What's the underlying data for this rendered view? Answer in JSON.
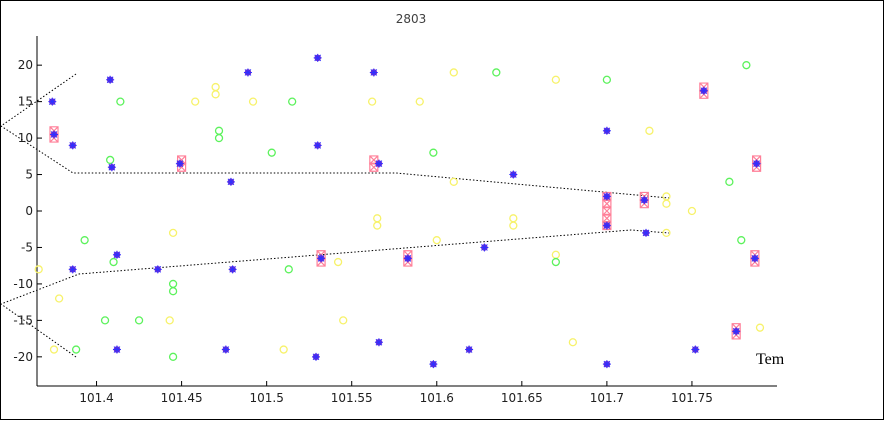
{
  "chart_data": {
    "type": "scatter",
    "title": "2803",
    "xlabel": "",
    "ylabel": "",
    "xlim": [
      101.365,
      101.8
    ],
    "ylim": [
      -24,
      24
    ],
    "x_ticks": [
      "101.4",
      "101.45",
      "101.5",
      "101.55",
      "101.6",
      "101.65",
      "101.7",
      "101.75"
    ],
    "y_ticks": [
      "-20",
      "-15",
      "-10",
      "-5",
      "0",
      "5",
      "10",
      "15",
      "20"
    ],
    "annotation": "Tem",
    "grid": false,
    "series": [
      {
        "marker": "open circle",
        "color": "#f7f26a",
        "points": [
          [
            101.366,
            -8
          ],
          [
            101.375,
            -19
          ],
          [
            101.378,
            -12
          ],
          [
            101.445,
            -3
          ],
          [
            101.443,
            -15
          ],
          [
            101.458,
            15
          ],
          [
            101.47,
            16
          ],
          [
            101.47,
            17
          ],
          [
            101.492,
            15
          ],
          [
            101.51,
            -19
          ],
          [
            101.542,
            -7
          ],
          [
            101.545,
            -15
          ],
          [
            101.562,
            15
          ],
          [
            101.565,
            -1
          ],
          [
            101.565,
            -2
          ],
          [
            101.59,
            15
          ],
          [
            101.6,
            -4
          ],
          [
            101.61,
            19
          ],
          [
            101.61,
            4
          ],
          [
            101.645,
            -1
          ],
          [
            101.645,
            -2
          ],
          [
            101.67,
            18
          ],
          [
            101.67,
            -6
          ],
          [
            101.68,
            -18
          ],
          [
            101.725,
            11
          ],
          [
            101.735,
            2
          ],
          [
            101.735,
            1
          ],
          [
            101.735,
            -3
          ],
          [
            101.75,
            0
          ],
          [
            101.79,
            -16
          ]
        ]
      },
      {
        "marker": "open circle",
        "color": "#5cf25c",
        "points": [
          [
            101.388,
            -19
          ],
          [
            101.393,
            -4
          ],
          [
            101.405,
            -15
          ],
          [
            101.408,
            7
          ],
          [
            101.41,
            -7
          ],
          [
            101.414,
            15
          ],
          [
            101.425,
            -15
          ],
          [
            101.445,
            -20
          ],
          [
            101.445,
            -10
          ],
          [
            101.445,
            -11
          ],
          [
            101.472,
            10
          ],
          [
            101.472,
            11
          ],
          [
            101.503,
            8
          ],
          [
            101.513,
            -8
          ],
          [
            101.515,
            15
          ],
          [
            101.598,
            8
          ],
          [
            101.635,
            19
          ],
          [
            101.67,
            -7
          ],
          [
            101.7,
            18
          ],
          [
            101.772,
            4
          ],
          [
            101.779,
            -4
          ],
          [
            101.782,
            20
          ]
        ]
      },
      {
        "marker": "x-box",
        "color": "#ff7f98",
        "points": [
          [
            101.375,
            11
          ],
          [
            101.375,
            10
          ],
          [
            101.45,
            7
          ],
          [
            101.45,
            6
          ],
          [
            101.532,
            -6
          ],
          [
            101.532,
            -7
          ],
          [
            101.563,
            7
          ],
          [
            101.563,
            6
          ],
          [
            101.583,
            -6
          ],
          [
            101.583,
            -7
          ],
          [
            101.7,
            2
          ],
          [
            101.7,
            1
          ],
          [
            101.7,
            0
          ],
          [
            101.7,
            -1
          ],
          [
            101.7,
            -2
          ],
          [
            101.722,
            2
          ],
          [
            101.722,
            1
          ],
          [
            101.757,
            17
          ],
          [
            101.757,
            16
          ],
          [
            101.776,
            -16
          ],
          [
            101.776,
            -17
          ],
          [
            101.787,
            -6
          ],
          [
            101.787,
            -7
          ],
          [
            101.788,
            7
          ],
          [
            101.788,
            6
          ]
        ]
      },
      {
        "marker": "star",
        "color": "#7b2cc8",
        "points": [
          [
            101.374,
            15
          ],
          [
            101.375,
            10.5
          ],
          [
            101.386,
            9
          ],
          [
            101.386,
            -8
          ],
          [
            101.408,
            18
          ],
          [
            101.409,
            6
          ],
          [
            101.412,
            -6
          ],
          [
            101.412,
            -19
          ],
          [
            101.436,
            -8
          ],
          [
            101.449,
            6.5
          ],
          [
            101.479,
            4
          ],
          [
            101.48,
            -8
          ],
          [
            101.476,
            -19
          ],
          [
            101.489,
            19
          ],
          [
            101.53,
            21
          ],
          [
            101.53,
            9
          ],
          [
            101.529,
            -20
          ],
          [
            101.532,
            -6.5
          ],
          [
            101.563,
            19
          ],
          [
            101.566,
            6.5
          ],
          [
            101.566,
            -18
          ],
          [
            101.583,
            -6.5
          ],
          [
            101.598,
            -21
          ],
          [
            101.619,
            -19
          ],
          [
            101.628,
            -5
          ],
          [
            101.645,
            5
          ],
          [
            101.7,
            11
          ],
          [
            101.7,
            2
          ],
          [
            101.7,
            -2
          ],
          [
            101.7,
            -21
          ],
          [
            101.722,
            1.5
          ],
          [
            101.723,
            -3
          ],
          [
            101.757,
            16.5
          ],
          [
            101.752,
            -19
          ],
          [
            101.776,
            -16.5
          ],
          [
            101.787,
            -6.5
          ],
          [
            101.788,
            6.5
          ]
        ]
      }
    ]
  }
}
